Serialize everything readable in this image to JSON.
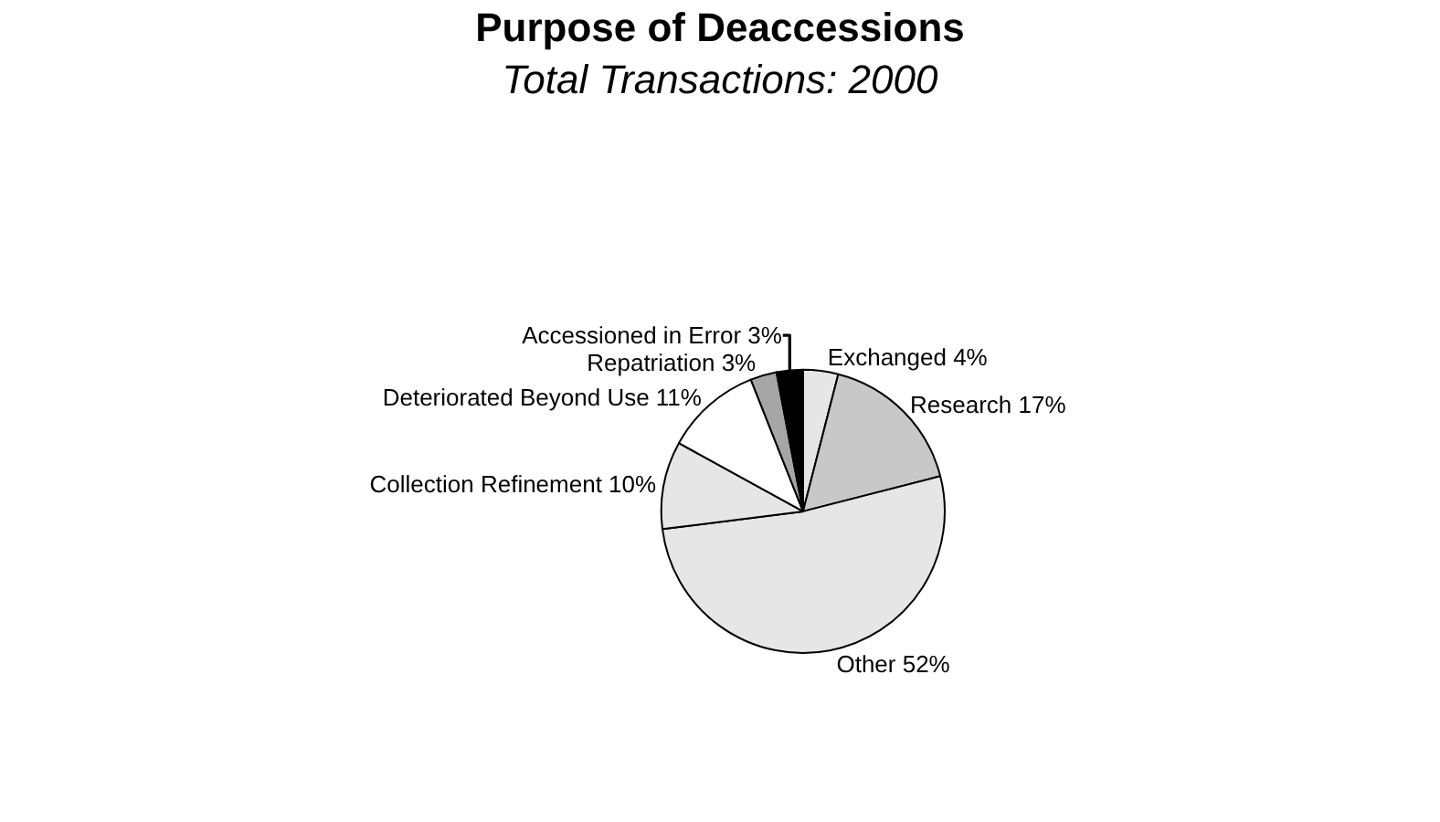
{
  "chart_data": {
    "type": "pie",
    "title": "Purpose of Deaccessions",
    "subtitle": "Total Transactions: 2000",
    "categories": [
      "Exchanged",
      "Research",
      "Other",
      "Collection Refinement",
      "Deteriorated Beyond Use",
      "Repatriation",
      "Accessioned in Error"
    ],
    "values": [
      4,
      17,
      52,
      10,
      11,
      3,
      3
    ],
    "value_labels": [
      "4%",
      "17%",
      "52%",
      "10%",
      "11%",
      "3%",
      "3%"
    ],
    "colors": [
      "#e6e6e6",
      "#c8c8c8",
      "#e6e6e6",
      "#e6e6e6",
      "#ffffff",
      "#a6a6a6",
      "#000000"
    ],
    "legend": false
  }
}
